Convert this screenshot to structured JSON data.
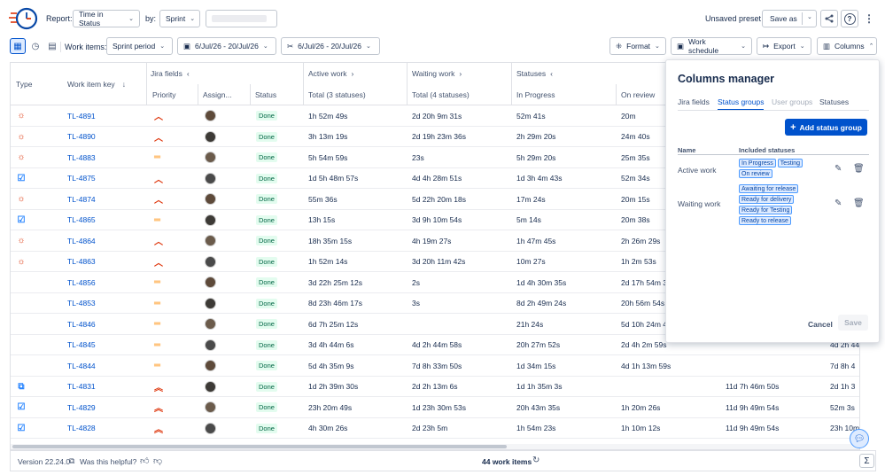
{
  "header": {
    "report_label": "Report:",
    "report_value": "Time in Status",
    "by_label": "by:",
    "by_value": "Sprint",
    "unsaved_preset": "Unsaved preset",
    "save_as": "Save as"
  },
  "toolbar": {
    "work_items_label": "Work items:",
    "sprint_period": "Sprint period",
    "date_range_1": "6/Jul/26 - 20/Jul/26",
    "date_range_2": "6/Jul/26 - 20/Jul/26",
    "format": "Format",
    "work_schedule": "Work schedule",
    "export": "Export",
    "columns": "Columns"
  },
  "table": {
    "group_headers": {
      "jira_fields": "Jira fields",
      "active_work": "Active work",
      "waiting_work": "Waiting work",
      "statuses": "Statuses"
    },
    "columns": {
      "type": "Type",
      "key": "Work item key",
      "priority": "Priority",
      "assignee": "Assign...",
      "status": "Status",
      "active_total": "Total (3 statuses)",
      "waiting_total": "Total (4 statuses)",
      "in_progress": "In Progress",
      "on_review": "On review"
    },
    "rows": [
      {
        "type": "bug",
        "key": "TL-4891",
        "priority": "high",
        "status": "Done",
        "active": "1h 52m 49s",
        "waiting": "2d 20h 9m 31s",
        "in_progress": "52m 41s",
        "on_review": "20m",
        "c9": "",
        "c10": ""
      },
      {
        "type": "bug",
        "key": "TL-4890",
        "priority": "high",
        "status": "Done",
        "active": "3h 13m 19s",
        "waiting": "2d 19h 23m 36s",
        "in_progress": "2h 29m 20s",
        "on_review": "24m 40s",
        "c9": "",
        "c10": ""
      },
      {
        "type": "bug",
        "key": "TL-4883",
        "priority": "medium",
        "status": "Done",
        "active": "5h 54m 59s",
        "waiting": "23s",
        "in_progress": "5h 29m 20s",
        "on_review": "25m 35s",
        "c9": "",
        "c10": ""
      },
      {
        "type": "task",
        "key": "TL-4875",
        "priority": "high",
        "status": "Done",
        "active": "1d 5h 48m 57s",
        "waiting": "4d 4h 28m 51s",
        "in_progress": "1d 3h 4m 43s",
        "on_review": "52m 34s",
        "c9": "",
        "c10": ""
      },
      {
        "type": "bug",
        "key": "TL-4874",
        "priority": "high",
        "status": "Done",
        "active": "55m 36s",
        "waiting": "5d 22h 20m 18s",
        "in_progress": "17m 24s",
        "on_review": "20m 15s",
        "c9": "",
        "c10": ""
      },
      {
        "type": "task",
        "key": "TL-4865",
        "priority": "medium",
        "status": "Done",
        "active": "13h 15s",
        "waiting": "3d 9h 10m 54s",
        "in_progress": "5m 14s",
        "on_review": "20m 38s",
        "c9": "",
        "c10": ""
      },
      {
        "type": "bug",
        "key": "TL-4864",
        "priority": "high",
        "status": "Done",
        "active": "18h 35m 15s",
        "waiting": "4h 19m 27s",
        "in_progress": "1h 47m 45s",
        "on_review": "2h 26m 29s",
        "c9": "",
        "c10": ""
      },
      {
        "type": "bug",
        "key": "TL-4863",
        "priority": "high",
        "status": "Done",
        "active": "1h 52m 14s",
        "waiting": "3d 20h 11m 42s",
        "in_progress": "10m 27s",
        "on_review": "1h 2m 53s",
        "c9": "",
        "c10": ""
      },
      {
        "type": "code",
        "key": "TL-4856",
        "priority": "medium",
        "status": "Done",
        "active": "3d 22h 25m 12s",
        "waiting": "2s",
        "in_progress": "1d 4h 30m 35s",
        "on_review": "2d 17h 54m 3",
        "c9": "",
        "c10": ""
      },
      {
        "type": "code",
        "key": "TL-4853",
        "priority": "medium",
        "status": "Done",
        "active": "8d 23h 46m 17s",
        "waiting": "3s",
        "in_progress": "8d 2h 49m 24s",
        "on_review": "20h 56m 54s",
        "c9": "",
        "c10": ""
      },
      {
        "type": "code",
        "key": "TL-4846",
        "priority": "medium",
        "status": "Done",
        "active": "6d 7h 25m 12s",
        "waiting": "",
        "in_progress": "21h 24s",
        "on_review": "5d 10h 24m 4",
        "c9": "",
        "c10": ""
      },
      {
        "type": "code",
        "key": "TL-4845",
        "priority": "medium",
        "status": "Done",
        "active": "3d 4h 44m 6s",
        "waiting": "4d 2h 44m 58s",
        "in_progress": "20h 27m 52s",
        "on_review": "2d 4h 2m 59s",
        "c9": "",
        "c10": "4d 2h 44"
      },
      {
        "type": "code",
        "key": "TL-4844",
        "priority": "medium",
        "status": "Done",
        "active": "5d 4h 35m 9s",
        "waiting": "7d 8h 33m 50s",
        "in_progress": "1d 34m 15s",
        "on_review": "4d 1h 13m 59s",
        "c9": "",
        "c10": "7d 8h 4"
      },
      {
        "type": "subtask",
        "key": "TL-4831",
        "priority": "highest",
        "status": "Done",
        "active": "1d 2h 39m 30s",
        "waiting": "2d 2h 13m 6s",
        "in_progress": "1d 1h 35m 3s",
        "on_review": "",
        "c9": "11d 7h 46m 50s",
        "c10": "2d 1h 3"
      },
      {
        "type": "task",
        "key": "TL-4829",
        "priority": "highest",
        "status": "Done",
        "active": "23h 20m 49s",
        "waiting": "1d 23h 30m 53s",
        "in_progress": "20h 43m 35s",
        "on_review": "1h 20m 26s",
        "c9": "11d 9h 49m 54s",
        "c10": "52m 3s"
      },
      {
        "type": "task",
        "key": "TL-4828",
        "priority": "highest",
        "status": "Done",
        "active": "4h 30m 26s",
        "waiting": "2d 23h 5m",
        "in_progress": "1h 54m 23s",
        "on_review": "1h 10m 12s",
        "c9": "11d 9h 49m 54s",
        "c10": "23h 10m"
      }
    ]
  },
  "footer": {
    "version": "Version 22.24.0",
    "helpful": "Was this helpful?",
    "count": "44 work items"
  },
  "columns_manager": {
    "title": "Columns manager",
    "tabs": [
      "Jira fields",
      "Status groups",
      "User groups",
      "Statuses"
    ],
    "add_button": "Add status group",
    "col_name": "Name",
    "col_included": "Included statuses",
    "groups": [
      {
        "name": "Active work",
        "statuses": [
          "In Progress",
          "Testing",
          "On review"
        ]
      },
      {
        "name": "Waiting work",
        "statuses": [
          "Awaiting for release",
          "Ready for delivery",
          "Ready for Testing",
          "Ready to release"
        ]
      }
    ],
    "cancel": "Cancel",
    "save": "Save"
  },
  "colors": {
    "accent": "#0052cc",
    "done_bg": "#e3fcef",
    "done_text": "#006644",
    "bug": "#de350b",
    "task": "#2684ff"
  }
}
